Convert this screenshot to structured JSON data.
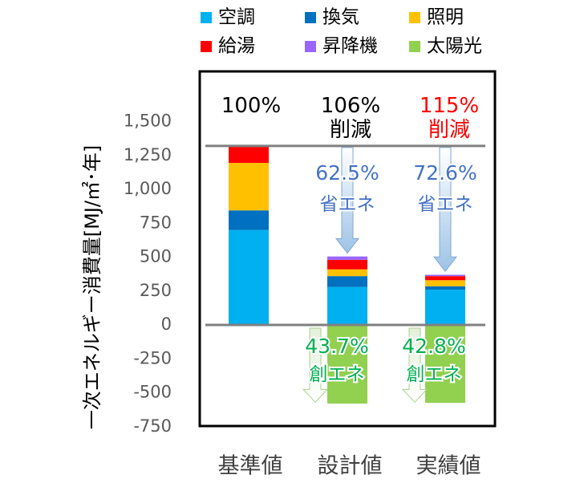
{
  "chart_data": {
    "type": "bar",
    "stacked": true,
    "ylabel": "一次エネルギー消費量[MJ/㎡･年]",
    "ylim": [
      -750,
      1500
    ],
    "yticks": [
      1500,
      1250,
      1000,
      750,
      500,
      250,
      0,
      -250,
      -500,
      -750
    ],
    "ytick_labels": [
      "1,500",
      "1,250",
      "1,000",
      "750",
      "500",
      "250",
      "0",
      "-250",
      "-500",
      "-750"
    ],
    "categories": [
      "基準値",
      "設計値",
      "実績値"
    ],
    "legend_position": "top",
    "baseline_value": 1320,
    "colors": {
      "空調": "#00b0f0",
      "換気": "#0070c0",
      "照明": "#ffc000",
      "給湯": "#ff0000",
      "昇降機": "#9966ff",
      "太陽光": "#92d050",
      "arrow_blue": "#9dc3e6",
      "arrow_green": "#c5e0b4",
      "text_blue": "#4472c4",
      "text_green": "#00b050",
      "text_red": "#ff0000"
    },
    "series": [
      {
        "name": "空調",
        "values": [
          700,
          280,
          260
        ]
      },
      {
        "name": "換気",
        "values": [
          145,
          80,
          25
        ]
      },
      {
        "name": "照明",
        "values": [
          350,
          50,
          45
        ]
      },
      {
        "name": "給湯",
        "values": [
          120,
          70,
          30
        ]
      },
      {
        "name": "昇降機",
        "values": [
          10,
          25,
          10
        ]
      },
      {
        "name": "太陽光",
        "values": [
          0,
          -580,
          -575
        ]
      }
    ],
    "legend_rows": [
      [
        "空調",
        "換気",
        "照明"
      ],
      [
        "給湯",
        "昇降機",
        "太陽光"
      ]
    ],
    "annotations": {
      "top": [
        {
          "line1": "100%",
          "line2": "",
          "color": "#000000"
        },
        {
          "line1": "106%",
          "line2": "削減",
          "color": "#000000"
        },
        {
          "line1": "115%",
          "line2": "削減",
          "color": "#ff0000"
        }
      ],
      "shoene": [
        {
          "pct": "62.5%",
          "label": "省エネ"
        },
        {
          "pct": "72.6%",
          "label": "省エネ"
        }
      ],
      "souene": [
        {
          "pct": "43.7%",
          "label": "創エネ"
        },
        {
          "pct": "42.8%",
          "label": "創エネ"
        }
      ]
    }
  }
}
